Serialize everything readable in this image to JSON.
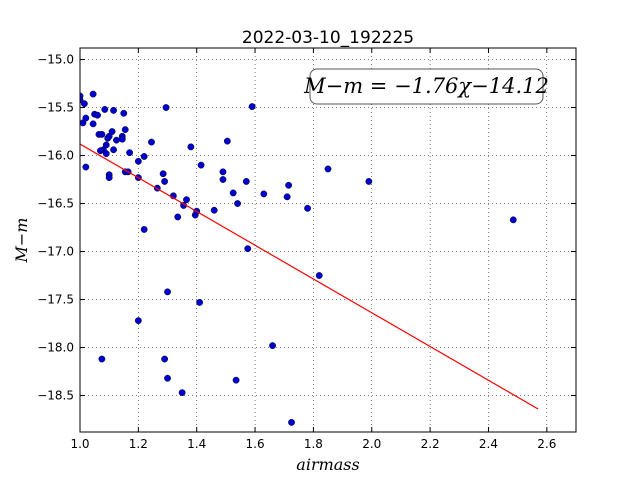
{
  "chart_data": {
    "type": "scatter",
    "title": "2022-03-10_192225",
    "xlabel": "airmass",
    "ylabel": "M−m",
    "xlim": [
      1.0,
      2.7
    ],
    "ylim": [
      -18.88,
      -14.88
    ],
    "ylim_inverted": false,
    "grid": true,
    "x_ticks": [
      1.0,
      1.2,
      1.4,
      1.6,
      1.8,
      2.0,
      2.2,
      2.4,
      2.6
    ],
    "x_tick_labels": [
      "1.0",
      "1.2",
      "1.4",
      "1.6",
      "1.8",
      "2.0",
      "2.2",
      "2.4",
      "2.6"
    ],
    "y_ticks": [
      -15.0,
      -15.5,
      -16.0,
      -16.5,
      -17.0,
      -17.5,
      -18.0,
      -18.5
    ],
    "y_tick_labels": [
      "−15.0",
      "−15.5",
      "−16.0",
      "−16.5",
      "−17.0",
      "−17.5",
      "−18.0",
      "−18.5"
    ],
    "annotation": "M−m = −1.76χ−14.12",
    "annotation_position": "top-right",
    "series": [
      {
        "type": "scatter",
        "color": "#0000cc",
        "points": [
          [
            1.0,
            -15.38
          ],
          [
            1.0,
            -15.42
          ],
          [
            1.01,
            -15.66
          ],
          [
            1.015,
            -15.46
          ],
          [
            1.02,
            -15.61
          ],
          [
            1.045,
            -15.36
          ],
          [
            1.045,
            -15.67
          ],
          [
            1.05,
            -15.57
          ],
          [
            1.06,
            -15.58
          ],
          [
            1.065,
            -15.78
          ],
          [
            1.075,
            -15.78
          ],
          [
            1.08,
            -15.94
          ],
          [
            1.085,
            -15.52
          ],
          [
            1.09,
            -15.98
          ],
          [
            1.095,
            -15.82
          ],
          [
            1.09,
            -15.89
          ],
          [
            1.1,
            -15.8
          ],
          [
            1.1,
            -16.2
          ],
          [
            1.1,
            -16.23
          ],
          [
            1.11,
            -15.75
          ],
          [
            1.115,
            -15.94
          ],
          [
            1.115,
            -15.53
          ],
          [
            1.125,
            -15.84
          ],
          [
            1.145,
            -15.8
          ],
          [
            1.145,
            -15.83
          ],
          [
            1.15,
            -15.56
          ],
          [
            1.155,
            -15.73
          ],
          [
            1.155,
            -16.17
          ],
          [
            1.165,
            -16.17
          ],
          [
            1.17,
            -15.97
          ],
          [
            1.02,
            -16.12
          ],
          [
            1.07,
            -15.95
          ],
          [
            1.2,
            -16.06
          ],
          [
            1.2,
            -16.23
          ],
          [
            1.22,
            -16.01
          ],
          [
            1.22,
            -16.77
          ],
          [
            1.245,
            -15.86
          ],
          [
            1.265,
            -16.34
          ],
          [
            1.285,
            -16.19
          ],
          [
            1.29,
            -16.27
          ],
          [
            1.295,
            -15.5
          ],
          [
            1.32,
            -16.42
          ],
          [
            1.335,
            -16.64
          ],
          [
            1.355,
            -16.52
          ],
          [
            1.365,
            -16.46
          ],
          [
            1.38,
            -15.91
          ],
          [
            1.395,
            -16.62
          ],
          [
            1.4,
            -16.58
          ],
          [
            1.415,
            -16.1
          ],
          [
            1.46,
            -16.57
          ],
          [
            1.49,
            -16.17
          ],
          [
            1.49,
            -16.25
          ],
          [
            1.505,
            -15.85
          ],
          [
            1.525,
            -16.39
          ],
          [
            1.54,
            -16.5
          ],
          [
            1.57,
            -16.27
          ],
          [
            1.575,
            -16.97
          ],
          [
            1.59,
            -15.49
          ],
          [
            1.63,
            -16.4
          ],
          [
            1.71,
            -16.43
          ],
          [
            1.715,
            -16.31
          ],
          [
            1.78,
            -16.55
          ],
          [
            1.82,
            -17.25
          ],
          [
            1.85,
            -16.14
          ],
          [
            1.99,
            -16.27
          ],
          [
            2.485,
            -16.67
          ],
          [
            1.2,
            -17.72
          ],
          [
            1.3,
            -17.42
          ],
          [
            1.41,
            -17.53
          ],
          [
            1.075,
            -18.12
          ],
          [
            1.29,
            -18.12
          ],
          [
            1.3,
            -18.32
          ],
          [
            1.35,
            -18.47
          ],
          [
            1.535,
            -18.34
          ],
          [
            1.66,
            -17.98
          ],
          [
            1.725,
            -18.78
          ]
        ]
      },
      {
        "type": "line",
        "color": "#ff0000",
        "points": [
          [
            1.0,
            -15.88
          ],
          [
            2.57,
            -18.64
          ]
        ]
      }
    ]
  }
}
